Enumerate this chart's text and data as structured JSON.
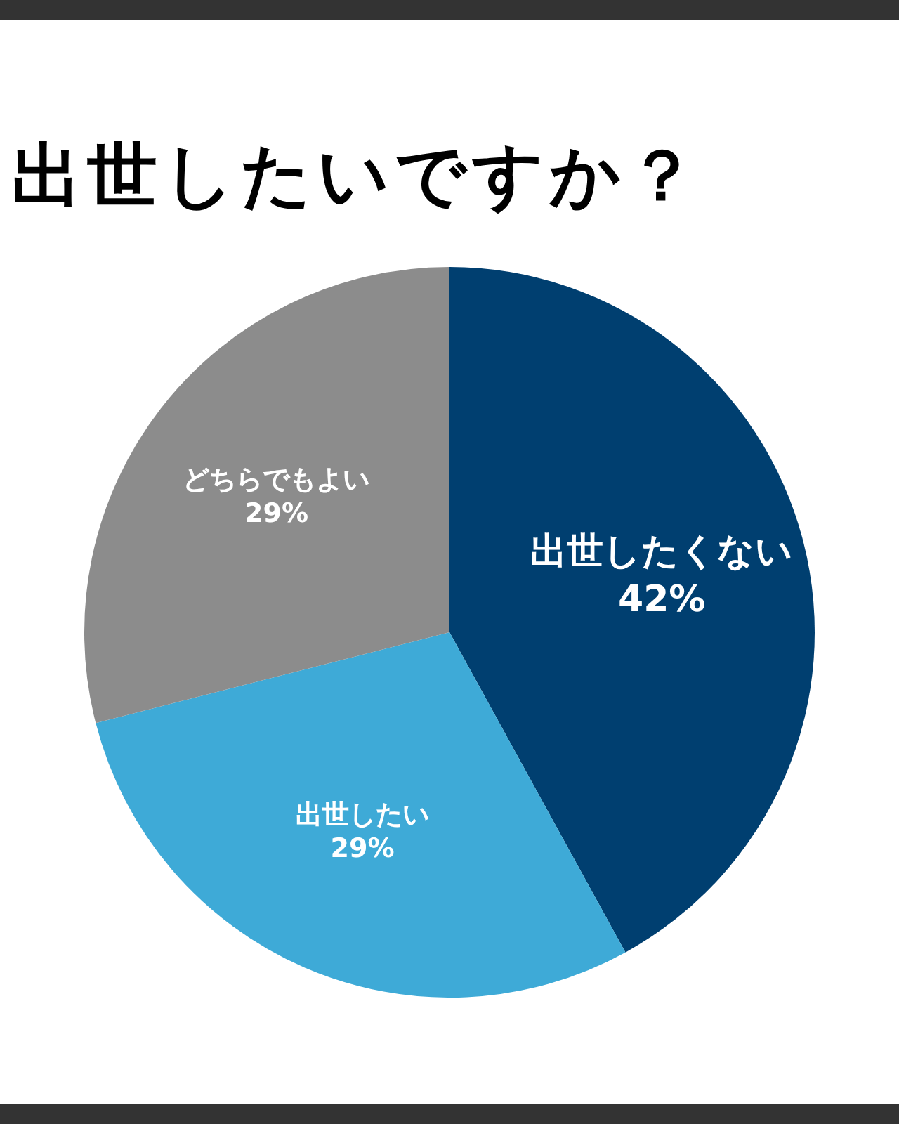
{
  "chart_data": {
    "type": "pie",
    "title": "出世したいですか？",
    "categories": [
      "出世したくない",
      "出世したい",
      "どちらでもよい"
    ],
    "values": [
      42,
      29,
      29
    ],
    "colors": [
      "#003f70",
      "#3eaad7",
      "#8c8c8c"
    ],
    "value_labels": [
      "42%",
      "29%",
      "29%"
    ],
    "legend": false
  }
}
